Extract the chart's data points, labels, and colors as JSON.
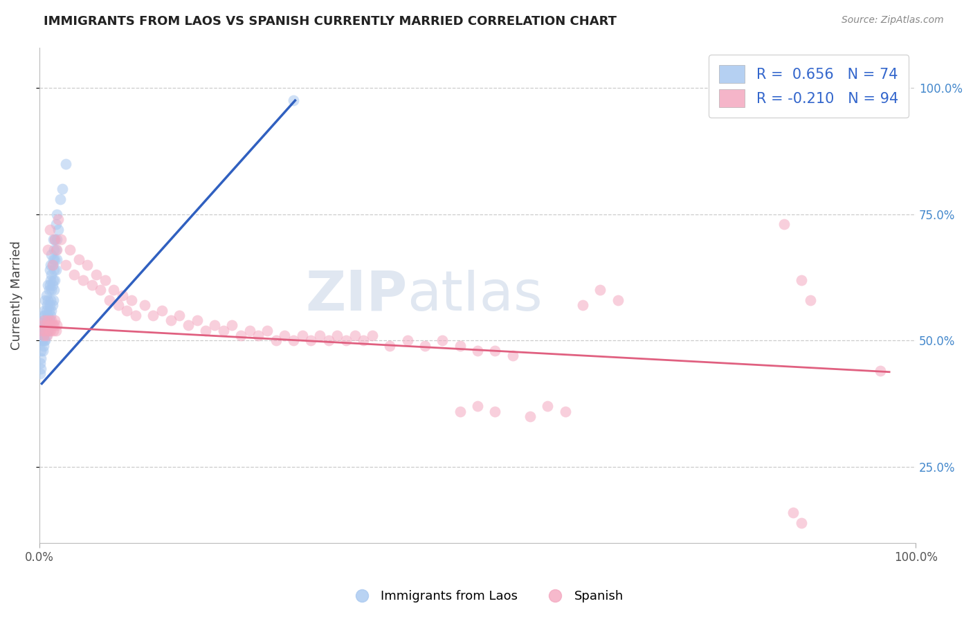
{
  "title": "IMMIGRANTS FROM LAOS VS SPANISH CURRENTLY MARRIED CORRELATION CHART",
  "source": "Source: ZipAtlas.com",
  "ylabel": "Currently Married",
  "y_tick_labels": [
    "25.0%",
    "50.0%",
    "75.0%",
    "100.0%"
  ],
  "y_tick_values": [
    0.25,
    0.5,
    0.75,
    1.0
  ],
  "xlim": [
    0.0,
    1.0
  ],
  "ylim": [
    0.1,
    1.08
  ],
  "legend_label_blue": "Immigrants from Laos",
  "legend_label_pink": "Spanish",
  "R_blue": 0.656,
  "N_blue": 74,
  "R_pink": -0.21,
  "N_pink": 94,
  "blue_color": "#A8C8F0",
  "pink_color": "#F4A8C0",
  "blue_line_color": "#3060C0",
  "pink_line_color": "#E06080",
  "blue_scatter": [
    [
      0.001,
      0.435
    ],
    [
      0.001,
      0.455
    ],
    [
      0.002,
      0.445
    ],
    [
      0.002,
      0.465
    ],
    [
      0.002,
      0.48
    ],
    [
      0.003,
      0.5
    ],
    [
      0.003,
      0.52
    ],
    [
      0.003,
      0.5
    ],
    [
      0.003,
      0.535
    ],
    [
      0.004,
      0.48
    ],
    [
      0.004,
      0.51
    ],
    [
      0.004,
      0.54
    ],
    [
      0.004,
      0.5
    ],
    [
      0.005,
      0.49
    ],
    [
      0.005,
      0.52
    ],
    [
      0.005,
      0.55
    ],
    [
      0.005,
      0.51
    ],
    [
      0.006,
      0.5
    ],
    [
      0.006,
      0.53
    ],
    [
      0.006,
      0.56
    ],
    [
      0.007,
      0.5
    ],
    [
      0.007,
      0.52
    ],
    [
      0.007,
      0.55
    ],
    [
      0.007,
      0.58
    ],
    [
      0.008,
      0.51
    ],
    [
      0.008,
      0.53
    ],
    [
      0.008,
      0.56
    ],
    [
      0.008,
      0.59
    ],
    [
      0.009,
      0.52
    ],
    [
      0.009,
      0.54
    ],
    [
      0.009,
      0.57
    ],
    [
      0.01,
      0.52
    ],
    [
      0.01,
      0.55
    ],
    [
      0.01,
      0.58
    ],
    [
      0.01,
      0.61
    ],
    [
      0.011,
      0.53
    ],
    [
      0.011,
      0.56
    ],
    [
      0.011,
      0.6
    ],
    [
      0.012,
      0.54
    ],
    [
      0.012,
      0.57
    ],
    [
      0.012,
      0.61
    ],
    [
      0.012,
      0.64
    ],
    [
      0.013,
      0.55
    ],
    [
      0.013,
      0.58
    ],
    [
      0.013,
      0.62
    ],
    [
      0.013,
      0.65
    ],
    [
      0.014,
      0.56
    ],
    [
      0.014,
      0.6
    ],
    [
      0.014,
      0.63
    ],
    [
      0.014,
      0.67
    ],
    [
      0.015,
      0.57
    ],
    [
      0.015,
      0.61
    ],
    [
      0.015,
      0.65
    ],
    [
      0.016,
      0.58
    ],
    [
      0.016,
      0.62
    ],
    [
      0.016,
      0.66
    ],
    [
      0.016,
      0.7
    ],
    [
      0.017,
      0.6
    ],
    [
      0.017,
      0.64
    ],
    [
      0.017,
      0.68
    ],
    [
      0.018,
      0.62
    ],
    [
      0.018,
      0.66
    ],
    [
      0.018,
      0.7
    ],
    [
      0.019,
      0.64
    ],
    [
      0.019,
      0.68
    ],
    [
      0.019,
      0.73
    ],
    [
      0.02,
      0.66
    ],
    [
      0.02,
      0.7
    ],
    [
      0.02,
      0.75
    ],
    [
      0.022,
      0.72
    ],
    [
      0.024,
      0.78
    ],
    [
      0.026,
      0.8
    ],
    [
      0.03,
      0.85
    ],
    [
      0.29,
      0.975
    ]
  ],
  "pink_scatter": [
    [
      0.003,
      0.52
    ],
    [
      0.004,
      0.53
    ],
    [
      0.005,
      0.51
    ],
    [
      0.006,
      0.54
    ],
    [
      0.007,
      0.52
    ],
    [
      0.008,
      0.53
    ],
    [
      0.009,
      0.51
    ],
    [
      0.01,
      0.54
    ],
    [
      0.011,
      0.52
    ],
    [
      0.012,
      0.53
    ],
    [
      0.013,
      0.52
    ],
    [
      0.014,
      0.54
    ],
    [
      0.015,
      0.53
    ],
    [
      0.016,
      0.52
    ],
    [
      0.017,
      0.53
    ],
    [
      0.018,
      0.54
    ],
    [
      0.019,
      0.52
    ],
    [
      0.02,
      0.53
    ],
    [
      0.01,
      0.68
    ],
    [
      0.012,
      0.72
    ],
    [
      0.015,
      0.65
    ],
    [
      0.018,
      0.7
    ],
    [
      0.02,
      0.68
    ],
    [
      0.022,
      0.74
    ],
    [
      0.025,
      0.7
    ],
    [
      0.03,
      0.65
    ],
    [
      0.035,
      0.68
    ],
    [
      0.04,
      0.63
    ],
    [
      0.045,
      0.66
    ],
    [
      0.05,
      0.62
    ],
    [
      0.055,
      0.65
    ],
    [
      0.06,
      0.61
    ],
    [
      0.065,
      0.63
    ],
    [
      0.07,
      0.6
    ],
    [
      0.075,
      0.62
    ],
    [
      0.08,
      0.58
    ],
    [
      0.085,
      0.6
    ],
    [
      0.09,
      0.57
    ],
    [
      0.095,
      0.59
    ],
    [
      0.1,
      0.56
    ],
    [
      0.105,
      0.58
    ],
    [
      0.11,
      0.55
    ],
    [
      0.12,
      0.57
    ],
    [
      0.13,
      0.55
    ],
    [
      0.14,
      0.56
    ],
    [
      0.15,
      0.54
    ],
    [
      0.16,
      0.55
    ],
    [
      0.17,
      0.53
    ],
    [
      0.18,
      0.54
    ],
    [
      0.19,
      0.52
    ],
    [
      0.2,
      0.53
    ],
    [
      0.21,
      0.52
    ],
    [
      0.22,
      0.53
    ],
    [
      0.23,
      0.51
    ],
    [
      0.24,
      0.52
    ],
    [
      0.25,
      0.51
    ],
    [
      0.26,
      0.52
    ],
    [
      0.27,
      0.5
    ],
    [
      0.28,
      0.51
    ],
    [
      0.29,
      0.5
    ],
    [
      0.3,
      0.51
    ],
    [
      0.31,
      0.5
    ],
    [
      0.32,
      0.51
    ],
    [
      0.33,
      0.5
    ],
    [
      0.34,
      0.51
    ],
    [
      0.35,
      0.5
    ],
    [
      0.36,
      0.51
    ],
    [
      0.37,
      0.5
    ],
    [
      0.38,
      0.51
    ],
    [
      0.4,
      0.49
    ],
    [
      0.42,
      0.5
    ],
    [
      0.44,
      0.49
    ],
    [
      0.46,
      0.5
    ],
    [
      0.48,
      0.49
    ],
    [
      0.5,
      0.48
    ],
    [
      0.52,
      0.48
    ],
    [
      0.54,
      0.47
    ],
    [
      0.48,
      0.36
    ],
    [
      0.5,
      0.37
    ],
    [
      0.52,
      0.36
    ],
    [
      0.56,
      0.35
    ],
    [
      0.58,
      0.37
    ],
    [
      0.6,
      0.36
    ],
    [
      0.62,
      0.57
    ],
    [
      0.64,
      0.6
    ],
    [
      0.66,
      0.58
    ],
    [
      0.85,
      0.73
    ],
    [
      0.87,
      0.62
    ],
    [
      0.88,
      0.58
    ],
    [
      0.86,
      0.16
    ],
    [
      0.87,
      0.14
    ],
    [
      0.96,
      0.44
    ]
  ],
  "blue_trend_x": [
    0.003,
    0.292
  ],
  "blue_trend_y": [
    0.415,
    0.975
  ],
  "pink_trend_x": [
    0.0,
    0.97
  ],
  "pink_trend_y": [
    0.528,
    0.438
  ],
  "watermark_line1": "ZIP",
  "watermark_line2": "atlas",
  "watermark": "ZIPatlas",
  "background_color": "#ffffff",
  "grid_color": "#cccccc"
}
